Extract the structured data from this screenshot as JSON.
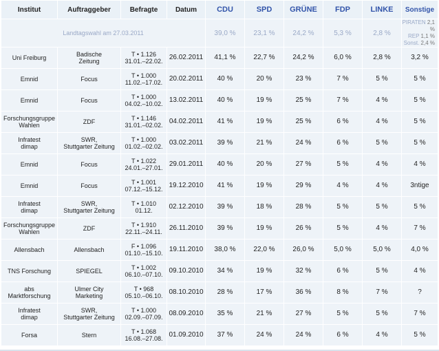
{
  "headers": {
    "institut": "Institut",
    "auftraggeber": "Auftraggeber",
    "befragte": "Befragte",
    "datum": "Datum",
    "cdu": "CDU",
    "spd": "SPD",
    "gruene": "GRÜNE",
    "fdp": "FDP",
    "linke": "LINKE",
    "sonstige": "Sonstige"
  },
  "reference": {
    "label": "Landtagswahl am 27.03.2011",
    "cdu": "39,0 %",
    "spd": "23,1 %",
    "gruene": "24,2 %",
    "fdp": "5,3 %",
    "linke": "2,8 %",
    "sonstige": [
      {
        "name": "PIRATEN",
        "value": "2,1 %"
      },
      {
        "name": "REP",
        "value": "1,1 %"
      },
      {
        "name": "Sonst.",
        "value": "2,4 %"
      }
    ]
  },
  "rows": [
    {
      "institut": [
        "Uni Freiburg"
      ],
      "auftraggeber": [
        "Badische",
        "Zeitung"
      ],
      "befragte": [
        "T • 1.126",
        "31.01.–22.02."
      ],
      "datum": "26.02.2011",
      "cdu": "41,1 %",
      "spd": "22,7 %",
      "gruene": "24,2 %",
      "fdp": "6,0 %",
      "linke": "2,8 %",
      "sonstige": "3,2 %"
    },
    {
      "institut": [
        "Emnid"
      ],
      "auftraggeber": [
        "Focus"
      ],
      "befragte": [
        "T • 1.000",
        "11.02.–17.02."
      ],
      "datum": "20.02.2011",
      "cdu": "40 %",
      "spd": "20 %",
      "gruene": "23 %",
      "fdp": "7 %",
      "linke": "5 %",
      "sonstige": "5 %"
    },
    {
      "institut": [
        "Emnid"
      ],
      "auftraggeber": [
        "Focus"
      ],
      "befragte": [
        "T • 1.000",
        "04.02.–10.02."
      ],
      "datum": "13.02.2011",
      "cdu": "40 %",
      "spd": "19 %",
      "gruene": "25 %",
      "fdp": "7 %",
      "linke": "4 %",
      "sonstige": "5 %"
    },
    {
      "institut": [
        "Forschungsgruppe",
        "Wahlen"
      ],
      "auftraggeber": [
        "ZDF"
      ],
      "befragte": [
        "T • 1.146",
        "31.01.–02.02."
      ],
      "datum": "04.02.2011",
      "cdu": "41 %",
      "spd": "19 %",
      "gruene": "25 %",
      "fdp": "6 %",
      "linke": "4 %",
      "sonstige": "5 %"
    },
    {
      "institut": [
        "Infratest",
        "dimap"
      ],
      "auftraggeber": [
        "SWR,",
        "Stuttgarter Zeitung"
      ],
      "befragte": [
        "T • 1.000",
        "01.02.–02.02."
      ],
      "datum": "03.02.2011",
      "cdu": "39 %",
      "spd": "21 %",
      "gruene": "24 %",
      "fdp": "6 %",
      "linke": "5 %",
      "sonstige": "5 %"
    },
    {
      "institut": [
        "Emnid"
      ],
      "auftraggeber": [
        "Focus"
      ],
      "befragte": [
        "T • 1.022",
        "24.01.–27.01."
      ],
      "datum": "29.01.2011",
      "cdu": "40 %",
      "spd": "20 %",
      "gruene": "27 %",
      "fdp": "5 %",
      "linke": "4 %",
      "sonstige": "4 %"
    },
    {
      "institut": [
        "Emnid"
      ],
      "auftraggeber": [
        "Focus"
      ],
      "befragte": [
        "T • 1.001",
        "07.12.–15.12."
      ],
      "datum": "19.12.2010",
      "cdu": "41 %",
      "spd": "19 %",
      "gruene": "29 %",
      "fdp": "4 %",
      "linke": "4 %",
      "sonstige": "3ntige"
    },
    {
      "institut": [
        "Infratest",
        "dimap"
      ],
      "auftraggeber": [
        "SWR,",
        "Stuttgarter Zeitung"
      ],
      "befragte": [
        "T • 1.010",
        "01.12."
      ],
      "datum": "02.12.2010",
      "cdu": "39 %",
      "spd": "18 %",
      "gruene": "28 %",
      "fdp": "5 %",
      "linke": "5 %",
      "sonstige": "5 %"
    },
    {
      "institut": [
        "Forschungsgruppe",
        "Wahlen"
      ],
      "auftraggeber": [
        "ZDF"
      ],
      "befragte": [
        "T • 1.910",
        "22.11.–24.11."
      ],
      "datum": "26.11.2010",
      "cdu": "39 %",
      "spd": "19 %",
      "gruene": "26 %",
      "fdp": "5 %",
      "linke": "4 %",
      "sonstige": "7 %"
    },
    {
      "institut": [
        "Allensbach"
      ],
      "auftraggeber": [
        "Allensbach"
      ],
      "befragte": [
        "F • 1.096",
        "01.10.–15.10."
      ],
      "datum": "19.11.2010",
      "cdu": "38,0 %",
      "spd": "22,0 %",
      "gruene": "26,0 %",
      "fdp": "5,0 %",
      "linke": "5,0 %",
      "sonstige": "4,0 %"
    },
    {
      "institut": [
        "TNS Forschung"
      ],
      "auftraggeber": [
        "SPIEGEL"
      ],
      "befragte": [
        "T • 1.002",
        "06.10.–07.10."
      ],
      "datum": "09.10.2010",
      "cdu": "34 %",
      "spd": "19 %",
      "gruene": "32 %",
      "fdp": "6 %",
      "linke": "5 %",
      "sonstige": "4 %"
    },
    {
      "institut": [
        "abs",
        "Marktforschung"
      ],
      "auftraggeber": [
        "Ulmer City",
        "Marketing"
      ],
      "befragte": [
        "T • 968",
        "05.10.–06.10."
      ],
      "datum": "08.10.2010",
      "cdu": "28 %",
      "spd": "17 %",
      "gruene": "36 %",
      "fdp": "8 %",
      "linke": "7 %",
      "sonstige": "?"
    },
    {
      "institut": [
        "Infratest",
        "dimap"
      ],
      "auftraggeber": [
        "SWR,",
        "Stuttgarter Zeitung"
      ],
      "befragte": [
        "T • 1.000",
        "02.09.–07.09."
      ],
      "datum": "08.09.2010",
      "cdu": "35 %",
      "spd": "21 %",
      "gruene": "27 %",
      "fdp": "5 %",
      "linke": "5 %",
      "sonstige": "7 %"
    },
    {
      "institut": [
        "Forsa"
      ],
      "auftraggeber": [
        "Stern"
      ],
      "befragte": [
        "T • 1.068",
        "16.08.–27.08."
      ],
      "datum": "01.09.2010",
      "cdu": "37 %",
      "spd": "24 %",
      "gruene": "24 %",
      "fdp": "6 %",
      "linke": "4 %",
      "sonstige": "5 %"
    }
  ]
}
